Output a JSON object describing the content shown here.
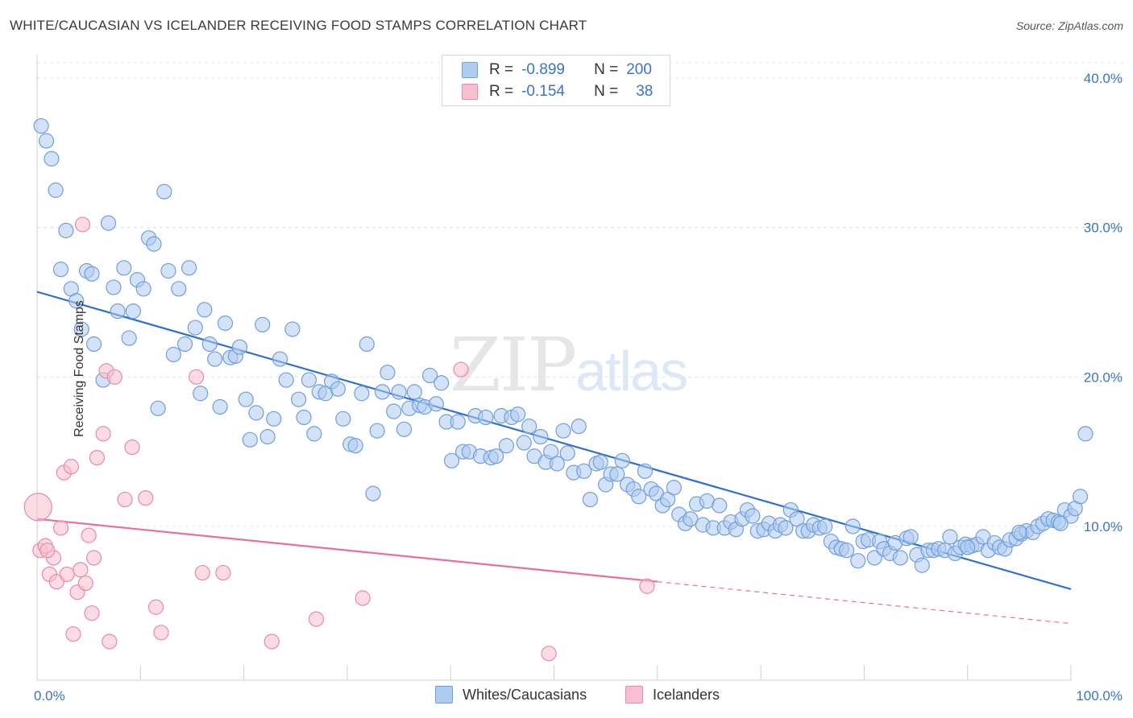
{
  "title": "WHITE/CAUCASIAN VS ICELANDER RECEIVING FOOD STAMPS CORRELATION CHART",
  "source": "Source: ZipAtlas.com",
  "watermark": {
    "zip": "ZIP",
    "atlas": "atlas"
  },
  "legend": {
    "rows": [
      {
        "r_label": "R =",
        "r_value": "-0.899",
        "n_label": "N =",
        "n_value": "200",
        "color": "#aecbf0",
        "border": "#6f9fdc"
      },
      {
        "r_label": "R =",
        "r_value": "-0.154",
        "n_label": "N =",
        "n_value": "38",
        "color": "#f8bfd0",
        "border": "#e88aa6"
      }
    ]
  },
  "bottom_legend": [
    {
      "label": "Whites/Caucasians",
      "color": "#aecbf0",
      "border": "#6f9fdc"
    },
    {
      "label": "Icelanders",
      "color": "#f8bfd0",
      "border": "#e88aa6"
    }
  ],
  "chart_data": {
    "type": "scatter",
    "ylabel": "Receiving Food Stamps",
    "xlim": [
      0,
      100
    ],
    "ylim": [
      0,
      40
    ],
    "x_tick_labels": [
      "0.0%",
      "100.0%"
    ],
    "y_ticks": [
      10,
      20,
      30,
      40
    ],
    "y_tick_labels": [
      "10.0%",
      "20.0%",
      "30.0%",
      "40.0%"
    ],
    "grid": true,
    "series": [
      {
        "name": "Whites/Caucasians",
        "color": "#aecbf0",
        "stroke": "#6f9fdc",
        "trend": {
          "x": [
            0,
            100
          ],
          "y": [
            25.7,
            5.8
          ],
          "color": "#2f6fcf"
        },
        "points": [
          [
            0.4,
            36.8
          ],
          [
            0.9,
            35.8
          ],
          [
            1.4,
            34.6
          ],
          [
            1.8,
            32.5
          ],
          [
            2.8,
            29.8
          ],
          [
            2.3,
            27.2
          ],
          [
            3.3,
            25.9
          ],
          [
            3.8,
            25.1
          ],
          [
            4.3,
            23.2
          ],
          [
            4.8,
            27.1
          ],
          [
            5.3,
            26.9
          ],
          [
            5.5,
            22.2
          ],
          [
            6.4,
            19.8
          ],
          [
            6.9,
            30.3
          ],
          [
            7.4,
            26.0
          ],
          [
            7.8,
            24.4
          ],
          [
            8.4,
            27.3
          ],
          [
            8.9,
            22.6
          ],
          [
            9.3,
            24.4
          ],
          [
            9.7,
            26.5
          ],
          [
            10.3,
            25.9
          ],
          [
            10.8,
            29.3
          ],
          [
            11.3,
            28.9
          ],
          [
            11.7,
            17.9
          ],
          [
            12.3,
            32.4
          ],
          [
            12.7,
            27.1
          ],
          [
            13.2,
            21.5
          ],
          [
            13.7,
            25.9
          ],
          [
            14.3,
            22.2
          ],
          [
            14.7,
            27.3
          ],
          [
            15.3,
            23.3
          ],
          [
            15.8,
            18.9
          ],
          [
            16.2,
            24.5
          ],
          [
            16.7,
            22.2
          ],
          [
            17.2,
            21.2
          ],
          [
            17.7,
            18.0
          ],
          [
            18.2,
            23.6
          ],
          [
            18.7,
            21.3
          ],
          [
            19.2,
            21.4
          ],
          [
            19.6,
            22.0
          ],
          [
            20.2,
            18.5
          ],
          [
            20.6,
            15.8
          ],
          [
            21.2,
            17.6
          ],
          [
            21.8,
            23.5
          ],
          [
            22.3,
            16.0
          ],
          [
            22.9,
            17.2
          ],
          [
            23.5,
            21.2
          ],
          [
            24.1,
            19.8
          ],
          [
            24.7,
            23.2
          ],
          [
            25.3,
            18.5
          ],
          [
            25.8,
            17.3
          ],
          [
            26.3,
            19.8
          ],
          [
            26.8,
            16.2
          ],
          [
            27.3,
            19.0
          ],
          [
            27.9,
            18.9
          ],
          [
            28.5,
            19.7
          ],
          [
            29.1,
            19.2
          ],
          [
            29.6,
            17.2
          ],
          [
            30.3,
            15.5
          ],
          [
            30.8,
            15.4
          ],
          [
            31.4,
            18.9
          ],
          [
            31.9,
            22.2
          ],
          [
            32.5,
            12.2
          ],
          [
            32.9,
            16.4
          ],
          [
            33.4,
            19.0
          ],
          [
            33.9,
            20.3
          ],
          [
            34.5,
            17.7
          ],
          [
            35.0,
            19.0
          ],
          [
            35.5,
            16.5
          ],
          [
            36.0,
            17.9
          ],
          [
            36.5,
            19.0
          ],
          [
            37.0,
            18.1
          ],
          [
            37.5,
            18.0
          ],
          [
            38.0,
            20.1
          ],
          [
            38.6,
            18.2
          ],
          [
            39.1,
            19.6
          ],
          [
            39.6,
            17.0
          ],
          [
            40.1,
            14.4
          ],
          [
            40.7,
            17.0
          ],
          [
            41.2,
            15.0
          ],
          [
            41.8,
            15.0
          ],
          [
            42.4,
            17.4
          ],
          [
            42.9,
            14.7
          ],
          [
            43.4,
            17.3
          ],
          [
            43.9,
            14.6
          ],
          [
            44.4,
            14.7
          ],
          [
            44.9,
            17.4
          ],
          [
            45.4,
            15.4
          ],
          [
            45.9,
            17.3
          ],
          [
            46.5,
            17.5
          ],
          [
            47.1,
            15.6
          ],
          [
            47.6,
            16.7
          ],
          [
            48.1,
            14.7
          ],
          [
            48.7,
            16.0
          ],
          [
            49.2,
            14.3
          ],
          [
            49.7,
            15.0
          ],
          [
            50.3,
            14.2
          ],
          [
            50.9,
            16.4
          ],
          [
            51.3,
            14.9
          ],
          [
            51.9,
            13.6
          ],
          [
            52.4,
            16.7
          ],
          [
            52.9,
            13.7
          ],
          [
            53.5,
            11.8
          ],
          [
            54.1,
            14.2
          ],
          [
            54.5,
            14.3
          ],
          [
            55.0,
            12.8
          ],
          [
            55.5,
            13.5
          ],
          [
            56.1,
            13.5
          ],
          [
            56.6,
            14.4
          ],
          [
            57.1,
            12.8
          ],
          [
            57.7,
            12.5
          ],
          [
            58.2,
            12.0
          ],
          [
            58.8,
            13.7
          ],
          [
            59.4,
            12.5
          ],
          [
            59.9,
            12.2
          ],
          [
            60.5,
            11.4
          ],
          [
            61.0,
            11.8
          ],
          [
            61.6,
            12.6
          ],
          [
            62.1,
            10.8
          ],
          [
            62.7,
            10.2
          ],
          [
            63.2,
            10.5
          ],
          [
            63.8,
            11.5
          ],
          [
            64.4,
            10.1
          ],
          [
            64.8,
            11.7
          ],
          [
            65.4,
            9.9
          ],
          [
            66.0,
            11.4
          ],
          [
            66.5,
            9.9
          ],
          [
            67.1,
            10.3
          ],
          [
            67.6,
            9.8
          ],
          [
            68.2,
            10.5
          ],
          [
            68.7,
            11.1
          ],
          [
            69.2,
            10.7
          ],
          [
            69.7,
            9.7
          ],
          [
            70.3,
            9.8
          ],
          [
            70.8,
            10.2
          ],
          [
            71.4,
            9.7
          ],
          [
            71.9,
            10.1
          ],
          [
            72.4,
            9.9
          ],
          [
            72.9,
            11.1
          ],
          [
            73.5,
            10.5
          ],
          [
            74.1,
            9.7
          ],
          [
            74.6,
            9.7
          ],
          [
            75.1,
            10.1
          ],
          [
            75.7,
            9.9
          ],
          [
            76.2,
            10.0
          ],
          [
            76.8,
            9.0
          ],
          [
            77.3,
            8.6
          ],
          [
            77.8,
            8.5
          ],
          [
            78.3,
            8.4
          ],
          [
            78.9,
            10.0
          ],
          [
            79.4,
            7.7
          ],
          [
            79.9,
            9.0
          ],
          [
            80.4,
            9.1
          ],
          [
            81.0,
            7.9
          ],
          [
            81.5,
            9.0
          ],
          [
            81.9,
            8.5
          ],
          [
            82.5,
            8.2
          ],
          [
            83.0,
            8.9
          ],
          [
            83.5,
            7.9
          ],
          [
            84.1,
            9.2
          ],
          [
            84.5,
            9.3
          ],
          [
            85.1,
            8.1
          ],
          [
            85.6,
            7.4
          ],
          [
            86.2,
            8.4
          ],
          [
            86.7,
            8.4
          ],
          [
            87.2,
            8.5
          ],
          [
            87.8,
            8.4
          ],
          [
            88.3,
            9.3
          ],
          [
            88.8,
            8.2
          ],
          [
            89.3,
            8.6
          ],
          [
            89.8,
            8.8
          ],
          [
            90.4,
            8.7
          ],
          [
            90.9,
            8.8
          ],
          [
            91.5,
            9.3
          ],
          [
            92.0,
            8.4
          ],
          [
            92.6,
            8.9
          ],
          [
            93.1,
            8.6
          ],
          [
            93.6,
            8.5
          ],
          [
            94.1,
            9.1
          ],
          [
            94.7,
            9.2
          ],
          [
            95.2,
            9.5
          ],
          [
            95.7,
            9.7
          ],
          [
            96.3,
            9.6
          ],
          [
            96.8,
            10.0
          ],
          [
            97.3,
            10.2
          ],
          [
            97.8,
            10.5
          ],
          [
            98.3,
            10.4
          ],
          [
            98.8,
            10.3
          ],
          [
            99.4,
            11.1
          ],
          [
            100.0,
            10.7
          ],
          [
            100.4,
            11.2
          ],
          [
            100.9,
            12.0
          ],
          [
            101.4,
            16.2
          ],
          [
            99.0,
            10.2
          ],
          [
            95.0,
            9.6
          ],
          [
            90.0,
            8.6
          ]
        ]
      },
      {
        "name": "Icelanders",
        "color": "#f8bfd0",
        "stroke": "#e88aa6",
        "trend": {
          "x": [
            0,
            60
          ],
          "y": [
            10.5,
            6.3
          ],
          "dashed_to": [
            100,
            3.5
          ],
          "color": "#e8709a"
        },
        "points": [
          [
            0.1,
            11.3
          ],
          [
            0.3,
            8.4
          ],
          [
            0.8,
            8.7
          ],
          [
            1.2,
            6.8
          ],
          [
            1.6,
            7.9
          ],
          [
            1.9,
            6.3
          ],
          [
            2.3,
            9.9
          ],
          [
            2.6,
            13.6
          ],
          [
            2.9,
            6.8
          ],
          [
            3.3,
            14.0
          ],
          [
            3.5,
            2.8
          ],
          [
            3.9,
            5.6
          ],
          [
            4.2,
            7.1
          ],
          [
            4.4,
            30.2
          ],
          [
            4.7,
            6.2
          ],
          [
            5.0,
            9.4
          ],
          [
            5.3,
            4.2
          ],
          [
            5.5,
            7.9
          ],
          [
            5.8,
            14.6
          ],
          [
            6.4,
            16.2
          ],
          [
            6.7,
            20.4
          ],
          [
            7.0,
            2.3
          ],
          [
            7.5,
            20.0
          ],
          [
            8.5,
            11.8
          ],
          [
            9.2,
            15.3
          ],
          [
            10.5,
            11.9
          ],
          [
            11.5,
            4.6
          ],
          [
            12.0,
            2.9
          ],
          [
            15.4,
            20.0
          ],
          [
            16.0,
            6.9
          ],
          [
            18.0,
            6.9
          ],
          [
            22.7,
            2.3
          ],
          [
            27.0,
            3.8
          ],
          [
            31.5,
            5.2
          ],
          [
            41.0,
            20.5
          ],
          [
            49.5,
            1.5
          ],
          [
            59.0,
            6.0
          ],
          [
            1.0,
            8.4
          ]
        ]
      }
    ]
  }
}
